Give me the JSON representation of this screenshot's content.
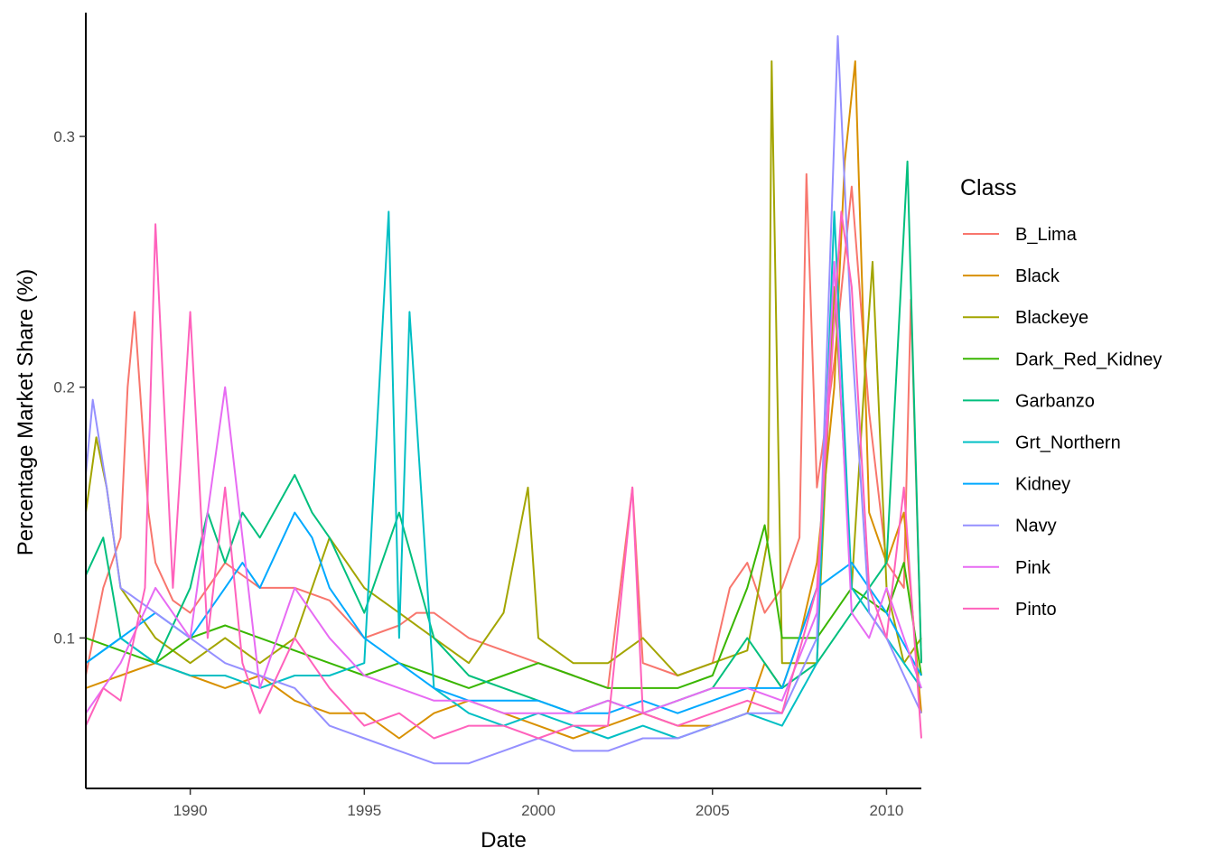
{
  "chart_data": {
    "type": "line",
    "title": "",
    "xlabel": "Date",
    "ylabel": "Percentage Market Share (%)",
    "xlim": [
      1987.0,
      2011.0
    ],
    "ylim": [
      0.04,
      0.34
    ],
    "x_ticks": [
      1990,
      1995,
      2000,
      2005,
      2010
    ],
    "x_tick_labels": [
      "1990",
      "1995",
      "2000",
      "2005",
      "2010"
    ],
    "y_ticks": [
      0.1,
      0.2,
      0.3
    ],
    "y_tick_labels": [
      "0.1",
      "0.2",
      "0.3"
    ],
    "grid": false,
    "legend": {
      "title": "Class",
      "position": "right"
    },
    "series": [
      {
        "name": "B_Lima",
        "color": "#F8766D",
        "x": [
          1987.0,
          1987.5,
          1988.0,
          1988.2,
          1988.4,
          1988.6,
          1988.8,
          1989.0,
          1989.5,
          1990.0,
          1990.5,
          1991.0,
          1991.5,
          1992.0,
          1993.0,
          1994.0,
          1995.0,
          1996.0,
          1996.5,
          1997.0,
          1997.5,
          1998.0,
          1999.0,
          2000.0,
          2001.0,
          2002.0,
          2002.7,
          2003.0,
          2004.0,
          2005.0,
          2005.5,
          2006.0,
          2006.5,
          2007.0,
          2007.5,
          2007.7,
          2008.0,
          2008.5,
          2009.0,
          2009.5,
          2010.0,
          2010.5,
          2010.7,
          2011.0
        ],
        "y": [
          0.085,
          0.12,
          0.14,
          0.2,
          0.23,
          0.19,
          0.15,
          0.13,
          0.115,
          0.11,
          0.12,
          0.13,
          0.125,
          0.12,
          0.12,
          0.115,
          0.1,
          0.105,
          0.11,
          0.11,
          0.105,
          0.1,
          0.095,
          0.09,
          0.085,
          0.08,
          0.16,
          0.09,
          0.085,
          0.09,
          0.12,
          0.13,
          0.11,
          0.12,
          0.14,
          0.285,
          0.16,
          0.21,
          0.28,
          0.19,
          0.13,
          0.12,
          0.235,
          0.09
        ]
      },
      {
        "name": "Black",
        "color": "#D89000",
        "x": [
          1987.0,
          1988.0,
          1989.0,
          1990.0,
          1991.0,
          1992.0,
          1993.0,
          1994.0,
          1995.0,
          1996.0,
          1997.0,
          1998.0,
          1999.0,
          2000.0,
          2001.0,
          2002.0,
          2003.0,
          2004.0,
          2005.0,
          2006.0,
          2006.5,
          2007.0,
          2007.5,
          2008.0,
          2008.5,
          2008.8,
          2009.1,
          2009.5,
          2010.0,
          2010.5,
          2011.0
        ],
        "y": [
          0.08,
          0.085,
          0.09,
          0.085,
          0.08,
          0.085,
          0.075,
          0.07,
          0.07,
          0.06,
          0.07,
          0.075,
          0.07,
          0.065,
          0.06,
          0.065,
          0.07,
          0.065,
          0.065,
          0.07,
          0.09,
          0.08,
          0.1,
          0.13,
          0.2,
          0.29,
          0.33,
          0.15,
          0.13,
          0.15,
          0.07
        ]
      },
      {
        "name": "Blackeye",
        "color": "#A3A500",
        "x": [
          1987.0,
          1987.3,
          1987.6,
          1988.0,
          1989.0,
          1990.0,
          1991.0,
          1992.0,
          1993.0,
          1993.5,
          1994.0,
          1994.5,
          1995.0,
          1996.0,
          1997.0,
          1998.0,
          1999.0,
          1999.7,
          2000.0,
          2001.0,
          2002.0,
          2003.0,
          2004.0,
          2005.0,
          2006.0,
          2006.6,
          2006.7,
          2007.0,
          2008.0,
          2008.5,
          2009.0,
          2009.4,
          2009.6,
          2010.0,
          2010.5,
          2011.0
        ],
        "y": [
          0.15,
          0.18,
          0.16,
          0.12,
          0.1,
          0.09,
          0.1,
          0.09,
          0.1,
          0.12,
          0.14,
          0.13,
          0.12,
          0.11,
          0.1,
          0.09,
          0.11,
          0.16,
          0.1,
          0.09,
          0.09,
          0.1,
          0.085,
          0.09,
          0.095,
          0.14,
          0.33,
          0.09,
          0.09,
          0.24,
          0.12,
          0.21,
          0.25,
          0.12,
          0.09,
          0.1
        ]
      },
      {
        "name": "Dark_Red_Kidney",
        "color": "#39B600",
        "x": [
          1987.0,
          1988.0,
          1989.0,
          1990.0,
          1991.0,
          1992.0,
          1993.0,
          1994.0,
          1995.0,
          1996.0,
          1997.0,
          1998.0,
          1999.0,
          2000.0,
          2001.0,
          2002.0,
          2003.0,
          2004.0,
          2005.0,
          2006.0,
          2006.5,
          2007.0,
          2008.0,
          2009.0,
          2010.0,
          2010.5,
          2011.0
        ],
        "y": [
          0.1,
          0.095,
          0.09,
          0.1,
          0.105,
          0.1,
          0.095,
          0.09,
          0.085,
          0.09,
          0.085,
          0.08,
          0.085,
          0.09,
          0.085,
          0.08,
          0.08,
          0.08,
          0.085,
          0.12,
          0.145,
          0.1,
          0.1,
          0.12,
          0.11,
          0.13,
          0.085
        ]
      },
      {
        "name": "Garbanzo",
        "color": "#00BF7D",
        "x": [
          1987.0,
          1987.5,
          1988.0,
          1989.0,
          1990.0,
          1990.5,
          1991.0,
          1991.5,
          1992.0,
          1993.0,
          1993.5,
          1994.0,
          1995.0,
          1996.0,
          1997.0,
          1998.0,
          1999.0,
          2000.0,
          2001.0,
          2002.0,
          2003.0,
          2004.0,
          2005.0,
          2006.0,
          2007.0,
          2008.0,
          2009.0,
          2010.0,
          2010.6,
          2011.0
        ],
        "y": [
          0.125,
          0.14,
          0.1,
          0.09,
          0.12,
          0.15,
          0.13,
          0.15,
          0.14,
          0.165,
          0.15,
          0.14,
          0.11,
          0.15,
          0.1,
          0.085,
          0.08,
          0.075,
          0.07,
          0.075,
          0.07,
          0.075,
          0.08,
          0.1,
          0.08,
          0.09,
          0.11,
          0.13,
          0.29,
          0.09
        ]
      },
      {
        "name": "Grt_Northern",
        "color": "#00BFC4",
        "x": [
          1987.0,
          1988.0,
          1989.0,
          1990.0,
          1991.0,
          1992.0,
          1993.0,
          1994.0,
          1995.0,
          1995.7,
          1996.0,
          1996.3,
          1997.0,
          1998.0,
          1999.0,
          2000.0,
          2001.0,
          2002.0,
          2003.0,
          2004.0,
          2005.0,
          2006.0,
          2007.0,
          2008.0,
          2008.5,
          2009.0,
          2010.0,
          2011.0
        ],
        "y": [
          0.09,
          0.1,
          0.09,
          0.085,
          0.085,
          0.08,
          0.085,
          0.085,
          0.09,
          0.27,
          0.1,
          0.23,
          0.08,
          0.07,
          0.065,
          0.07,
          0.065,
          0.06,
          0.065,
          0.06,
          0.065,
          0.07,
          0.065,
          0.09,
          0.27,
          0.12,
          0.1,
          0.08
        ]
      },
      {
        "name": "Kidney",
        "color": "#00A9FF",
        "x": [
          1987.0,
          1988.0,
          1989.0,
          1990.0,
          1991.0,
          1991.5,
          1992.0,
          1992.5,
          1993.0,
          1993.5,
          1994.0,
          1995.0,
          1996.0,
          1997.0,
          1998.0,
          1999.0,
          2000.0,
          2001.0,
          2002.0,
          2003.0,
          2004.0,
          2005.0,
          2006.0,
          2007.0,
          2008.0,
          2009.0,
          2010.0,
          2011.0
        ],
        "y": [
          0.09,
          0.1,
          0.11,
          0.1,
          0.12,
          0.13,
          0.12,
          0.135,
          0.15,
          0.14,
          0.12,
          0.1,
          0.09,
          0.08,
          0.075,
          0.075,
          0.075,
          0.07,
          0.07,
          0.075,
          0.07,
          0.075,
          0.08,
          0.08,
          0.12,
          0.13,
          0.11,
          0.085
        ]
      },
      {
        "name": "Navy",
        "color": "#9590FF",
        "x": [
          1987.0,
          1987.2,
          1987.6,
          1988.0,
          1989.0,
          1990.0,
          1991.0,
          1992.0,
          1993.0,
          1994.0,
          1995.0,
          1996.0,
          1997.0,
          1998.0,
          1999.0,
          2000.0,
          2001.0,
          2002.0,
          2003.0,
          2004.0,
          2005.0,
          2006.0,
          2007.0,
          2008.0,
          2008.6,
          2009.0,
          2009.5,
          2010.0,
          2011.0
        ],
        "y": [
          0.165,
          0.195,
          0.16,
          0.12,
          0.11,
          0.1,
          0.09,
          0.085,
          0.08,
          0.065,
          0.06,
          0.055,
          0.05,
          0.05,
          0.055,
          0.06,
          0.055,
          0.055,
          0.06,
          0.06,
          0.065,
          0.07,
          0.07,
          0.1,
          0.34,
          0.22,
          0.11,
          0.1,
          0.07
        ]
      },
      {
        "name": "Pink",
        "color": "#E76BF3",
        "x": [
          1987.0,
          1988.0,
          1989.0,
          1990.0,
          1991.0,
          1992.0,
          1993.0,
          1994.0,
          1995.0,
          1996.0,
          1997.0,
          1998.0,
          1999.0,
          2000.0,
          2001.0,
          2002.0,
          2003.0,
          2004.0,
          2005.0,
          2006.0,
          2007.0,
          2008.0,
          2008.5,
          2009.0,
          2009.5,
          2010.0,
          2011.0
        ],
        "y": [
          0.07,
          0.09,
          0.12,
          0.1,
          0.2,
          0.08,
          0.12,
          0.1,
          0.085,
          0.08,
          0.075,
          0.075,
          0.07,
          0.07,
          0.07,
          0.075,
          0.07,
          0.075,
          0.08,
          0.08,
          0.075,
          0.11,
          0.25,
          0.11,
          0.1,
          0.12,
          0.08
        ]
      },
      {
        "name": "Pinto",
        "color": "#FF62BC",
        "x": [
          1987.0,
          1987.5,
          1988.0,
          1988.7,
          1989.0,
          1989.5,
          1990.0,
          1990.5,
          1991.0,
          1991.5,
          1992.0,
          1993.0,
          1994.0,
          1995.0,
          1996.0,
          1997.0,
          1998.0,
          1999.0,
          2000.0,
          2001.0,
          2002.0,
          2002.7,
          2003.0,
          2004.0,
          2005.0,
          2006.0,
          2007.0,
          2008.0,
          2008.7,
          2009.0,
          2009.5,
          2010.0,
          2010.5,
          2011.0
        ],
        "y": [
          0.065,
          0.08,
          0.075,
          0.12,
          0.265,
          0.12,
          0.23,
          0.1,
          0.16,
          0.09,
          0.07,
          0.1,
          0.08,
          0.065,
          0.07,
          0.06,
          0.065,
          0.065,
          0.06,
          0.065,
          0.065,
          0.16,
          0.07,
          0.065,
          0.07,
          0.075,
          0.07,
          0.12,
          0.27,
          0.24,
          0.12,
          0.1,
          0.16,
          0.06
        ]
      }
    ]
  }
}
